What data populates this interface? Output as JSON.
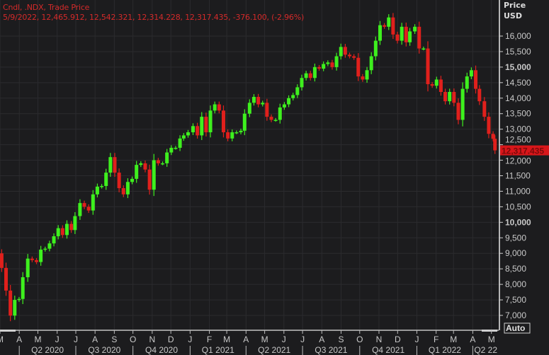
{
  "header": {
    "line1": "Cndl, .NDX, Trade Price",
    "line2": "5/9/2022, 12,465.912, 12,542.321, 12,314.228, 12,317.435, -376.100, (-2.96%)"
  },
  "axis": {
    "title_line1": "Price",
    "title_line2": "USD",
    "auto_label": "Auto"
  },
  "chart_data": {
    "type": "candlestick",
    "symbol": ".NDX",
    "ylim": [
      6700,
      16900
    ],
    "yticks": [
      7000,
      7500,
      8000,
      8500,
      9000,
      9500,
      10000,
      10500,
      11000,
      11500,
      12000,
      12500,
      13000,
      13500,
      14000,
      14500,
      15000,
      15500,
      16000
    ],
    "ytick_labels": [
      "7,000",
      "7,500",
      "8,000",
      "8,500",
      "9,000",
      "9,500",
      "10,000",
      "10,500",
      "11,000",
      "11,500",
      "12,000",
      "12,500",
      "13,000",
      "13,500",
      "14,000",
      "14,500",
      "15,000",
      "15,500",
      "16,000"
    ],
    "ytick_bold": [
      "10,000",
      "15,000"
    ],
    "xrange": [
      "2020-03-01",
      "2022-05-10"
    ],
    "month_ticks": [
      [
        "2020-03-01",
        "M"
      ],
      [
        "2020-04-01",
        "A"
      ],
      [
        "2020-05-01",
        "M"
      ],
      [
        "2020-06-01",
        "J"
      ],
      [
        "2020-07-01",
        "J"
      ],
      [
        "2020-08-01",
        "A"
      ],
      [
        "2020-09-01",
        "S"
      ],
      [
        "2020-10-01",
        "O"
      ],
      [
        "2020-11-01",
        "N"
      ],
      [
        "2020-12-01",
        "D"
      ],
      [
        "2021-01-01",
        "J"
      ],
      [
        "2021-02-01",
        "F"
      ],
      [
        "2021-03-01",
        "M"
      ],
      [
        "2021-04-01",
        "A"
      ],
      [
        "2021-05-01",
        "M"
      ],
      [
        "2021-06-01",
        "J"
      ],
      [
        "2021-07-01",
        "J"
      ],
      [
        "2021-08-01",
        "A"
      ],
      [
        "2021-09-01",
        "S"
      ],
      [
        "2021-10-01",
        "O"
      ],
      [
        "2021-11-01",
        "N"
      ],
      [
        "2021-12-01",
        "D"
      ],
      [
        "2022-01-01",
        "J"
      ],
      [
        "2022-02-01",
        "F"
      ],
      [
        "2022-03-01",
        "M"
      ],
      [
        "2022-04-01",
        "A"
      ],
      [
        "2022-05-01",
        "M"
      ]
    ],
    "quarter_labels": [
      [
        "2020-04-01",
        "Q2 2020"
      ],
      [
        "2020-07-01",
        "Q3 2020"
      ],
      [
        "2020-10-01",
        "Q4 2020"
      ],
      [
        "2021-01-01",
        "Q1 2021"
      ],
      [
        "2021-04-01",
        "Q2 2021"
      ],
      [
        "2021-07-01",
        "Q3 2021"
      ],
      [
        "2021-10-01",
        "Q4 2021"
      ],
      [
        "2022-01-01",
        "Q1 2022"
      ],
      [
        "2022-04-01",
        "Q2 22"
      ]
    ],
    "last_price": 12317.435,
    "last_price_label": "12,317.435",
    "colors": {
      "up": "#3ef01e",
      "down": "#e0201c",
      "background": "#1c1c1e",
      "grid": "#2b2b2e",
      "header": "#d42a2a"
    },
    "weekly_close": [
      [
        "2020-03-02",
        9000
      ],
      [
        "2020-03-06",
        8530
      ],
      [
        "2020-03-13",
        7800
      ],
      [
        "2020-03-20",
        6994
      ],
      [
        "2020-03-27",
        7500
      ],
      [
        "2020-04-03",
        7530
      ],
      [
        "2020-04-09",
        8230
      ],
      [
        "2020-04-17",
        8830
      ],
      [
        "2020-04-24",
        8780
      ],
      [
        "2020-05-01",
        8720
      ],
      [
        "2020-05-08",
        9120
      ],
      [
        "2020-05-15",
        9150
      ],
      [
        "2020-05-22",
        9320
      ],
      [
        "2020-05-29",
        9550
      ],
      [
        "2020-06-05",
        9810
      ],
      [
        "2020-06-12",
        9590
      ],
      [
        "2020-06-19",
        9950
      ],
      [
        "2020-06-26",
        9750
      ],
      [
        "2020-07-02",
        10200
      ],
      [
        "2020-07-10",
        10620
      ],
      [
        "2020-07-17",
        10500
      ],
      [
        "2020-07-24",
        10380
      ],
      [
        "2020-07-31",
        10900
      ],
      [
        "2020-08-07",
        11150
      ],
      [
        "2020-08-14",
        11170
      ],
      [
        "2020-08-21",
        11600
      ],
      [
        "2020-08-28",
        12100
      ],
      [
        "2020-09-04",
        11600
      ],
      [
        "2020-09-11",
        11100
      ],
      [
        "2020-09-18",
        10900
      ],
      [
        "2020-09-25",
        11300
      ],
      [
        "2020-10-02",
        11400
      ],
      [
        "2020-10-09",
        11850
      ],
      [
        "2020-10-16",
        11900
      ],
      [
        "2020-10-23",
        11700
      ],
      [
        "2020-10-30",
        11050
      ],
      [
        "2020-11-06",
        12000
      ],
      [
        "2020-11-13",
        11900
      ],
      [
        "2020-11-20",
        11900
      ],
      [
        "2020-11-27",
        12250
      ],
      [
        "2020-12-04",
        12400
      ],
      [
        "2020-12-11",
        12400
      ],
      [
        "2020-12-18",
        12700
      ],
      [
        "2020-12-24",
        12800
      ],
      [
        "2020-12-31",
        12900
      ],
      [
        "2021-01-08",
        13100
      ],
      [
        "2021-01-15",
        12800
      ],
      [
        "2021-01-22",
        13400
      ],
      [
        "2021-01-29",
        12900
      ],
      [
        "2021-02-05",
        13600
      ],
      [
        "2021-02-12",
        13800
      ],
      [
        "2021-02-19",
        13600
      ],
      [
        "2021-02-26",
        12900
      ],
      [
        "2021-03-05",
        12700
      ],
      [
        "2021-03-12",
        12900
      ],
      [
        "2021-03-19",
        12900
      ],
      [
        "2021-03-26",
        12950
      ],
      [
        "2021-04-01",
        13500
      ],
      [
        "2021-04-09",
        13850
      ],
      [
        "2021-04-16",
        14040
      ],
      [
        "2021-04-23",
        13800
      ],
      [
        "2021-04-30",
        13850
      ],
      [
        "2021-05-07",
        13400
      ],
      [
        "2021-05-14",
        13300
      ],
      [
        "2021-05-21",
        13300
      ],
      [
        "2021-05-28",
        13700
      ],
      [
        "2021-06-04",
        13800
      ],
      [
        "2021-06-11",
        14000
      ],
      [
        "2021-06-18",
        14100
      ],
      [
        "2021-06-25",
        14350
      ],
      [
        "2021-07-02",
        14650
      ],
      [
        "2021-07-09",
        14800
      ],
      [
        "2021-07-16",
        14650
      ],
      [
        "2021-07-23",
        15000
      ],
      [
        "2021-07-30",
        14950
      ],
      [
        "2021-08-06",
        15100
      ],
      [
        "2021-08-13",
        15150
      ],
      [
        "2021-08-20",
        15000
      ],
      [
        "2021-08-27",
        15350
      ],
      [
        "2021-09-03",
        15650
      ],
      [
        "2021-09-10",
        15400
      ],
      [
        "2021-09-17",
        15350
      ],
      [
        "2021-09-24",
        15300
      ],
      [
        "2021-10-01",
        14700
      ],
      [
        "2021-10-08",
        14600
      ],
      [
        "2021-10-15",
        14900
      ],
      [
        "2021-10-22",
        15350
      ],
      [
        "2021-10-29",
        15850
      ],
      [
        "2021-11-05",
        16350
      ],
      [
        "2021-11-12",
        16300
      ],
      [
        "2021-11-19",
        16600
      ],
      [
        "2021-11-26",
        16050
      ],
      [
        "2021-12-03",
        15850
      ],
      [
        "2021-12-10",
        16300
      ],
      [
        "2021-12-17",
        15800
      ],
      [
        "2021-12-23",
        16150
      ],
      [
        "2021-12-31",
        16300
      ],
      [
        "2022-01-07",
        15600
      ],
      [
        "2022-01-14",
        15600
      ],
      [
        "2022-01-21",
        14450
      ],
      [
        "2022-01-28",
        14400
      ],
      [
        "2022-02-04",
        14600
      ],
      [
        "2022-02-11",
        14200
      ],
      [
        "2022-02-18",
        13900
      ],
      [
        "2022-02-25",
        14200
      ],
      [
        "2022-03-04",
        13850
      ],
      [
        "2022-03-11",
        13300
      ],
      [
        "2022-03-18",
        14300
      ],
      [
        "2022-03-25",
        14700
      ],
      [
        "2022-04-01",
        14900
      ],
      [
        "2022-04-08",
        14300
      ],
      [
        "2022-04-14",
        13900
      ],
      [
        "2022-04-22",
        13400
      ],
      [
        "2022-04-29",
        12850
      ],
      [
        "2022-05-06",
        12690
      ],
      [
        "2022-05-09",
        12317.435
      ]
    ]
  }
}
